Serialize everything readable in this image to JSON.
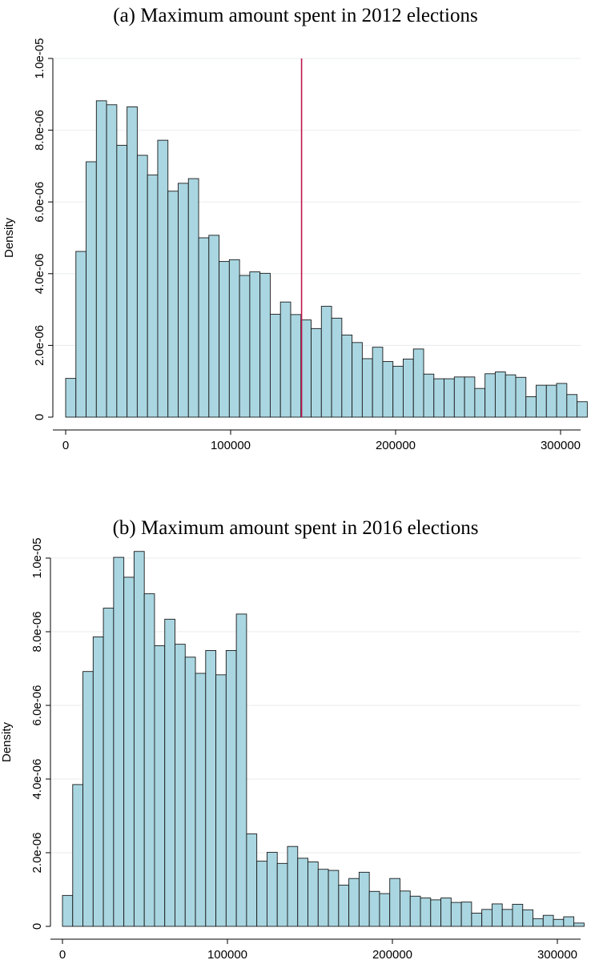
{
  "colors": {
    "bar_fill": "#a9d6e1",
    "bar_stroke": "#1a1a1a",
    "grid": "#e8ecee",
    "ref_line": "#c0154a"
  },
  "chart_data": [
    {
      "type": "bar",
      "title": "(a) Maximum amount spent in 2012 elections",
      "xlabel": "",
      "ylabel": "Density",
      "bin_width": 6200,
      "x_start": 0,
      "xlim": [
        0,
        310000
      ],
      "ylim": [
        0,
        1e-05
      ],
      "grid": true,
      "x_ticks": [
        0,
        100000,
        200000,
        300000
      ],
      "x_tick_labels": [
        "0",
        "100000",
        "200000",
        "300000"
      ],
      "y_ticks": [
        0,
        2e-06,
        4e-06,
        6e-06,
        8e-06,
        1e-05
      ],
      "y_tick_labels": [
        "0",
        "2.0e-06",
        "4.0e-06",
        "6.0e-06",
        "8.0e-06",
        "1.0e-05"
      ],
      "reference_line_x": 143000,
      "values": [
        1.08e-06,
        4.62e-06,
        7.12e-06,
        8.82e-06,
        8.71e-06,
        7.58e-06,
        8.65e-06,
        7.3e-06,
        6.75e-06,
        7.72e-06,
        6.3e-06,
        6.52e-06,
        6.65e-06,
        5e-06,
        5.07e-06,
        4.34e-06,
        4.39e-06,
        3.95e-06,
        4.05e-06,
        4.01e-06,
        2.87e-06,
        3.21e-06,
        2.86e-06,
        2.71e-06,
        2.47e-06,
        3.09e-06,
        2.76e-06,
        2.29e-06,
        2.08e-06,
        1.63e-06,
        1.95e-06,
        1.55e-06,
        1.42e-06,
        1.62e-06,
        1.9e-06,
        1.2e-06,
        1.07e-06,
        1.07e-06,
        1.12e-06,
        1.12e-06,
        8e-07,
        1.21e-06,
        1.26e-06,
        1.18e-06,
        1.11e-06,
        5.7e-07,
        8.9e-07,
        8.9e-07,
        9.4e-07,
        6.3e-07,
        4.3e-07
      ]
    },
    {
      "type": "bar",
      "title": "(b) Maximum amount spent in 2016 elections",
      "xlabel": "",
      "ylabel": "Density",
      "bin_width": 6200,
      "x_start": 0,
      "xlim": [
        0,
        310000
      ],
      "ylim": [
        0,
        1e-05
      ],
      "grid": true,
      "x_ticks": [
        0,
        100000,
        200000,
        300000
      ],
      "x_tick_labels": [
        "0",
        "100000",
        "200000",
        "300000"
      ],
      "y_ticks": [
        0,
        2e-06,
        4e-06,
        6e-06,
        8e-06,
        1e-05
      ],
      "y_tick_labels": [
        "0",
        "2.0e-06",
        "4.0e-06",
        "6.0e-06",
        "8.0e-06",
        "1.0e-05"
      ],
      "values": [
        8.4e-07,
        3.85e-06,
        6.92e-06,
        7.86e-06,
        8.64e-06,
        1.002e-05,
        9.48e-06,
        1.018e-05,
        9.03e-06,
        7.62e-06,
        8.34e-06,
        7.66e-06,
        7.31e-06,
        6.87e-06,
        7.49e-06,
        6.83e-06,
        7.49e-06,
        8.48e-06,
        2.51e-06,
        1.77e-06,
        2.01e-06,
        1.71e-06,
        2.17e-06,
        1.85e-06,
        1.75e-06,
        1.55e-06,
        1.52e-06,
        1.12e-06,
        1.3e-06,
        1.47e-06,
        9.5e-07,
        8.9e-07,
        1.3e-06,
        9.6e-07,
        8.2e-07,
        7.7e-07,
        7.2e-07,
        7.7e-07,
        6.5e-07,
        6.6e-07,
        3.6e-07,
        4.6e-07,
        6.1e-07,
        4.6e-07,
        6e-07,
        4.5e-07,
        2.1e-07,
        3e-07,
        1.9e-07,
        2.6e-07,
        9e-08
      ]
    }
  ]
}
